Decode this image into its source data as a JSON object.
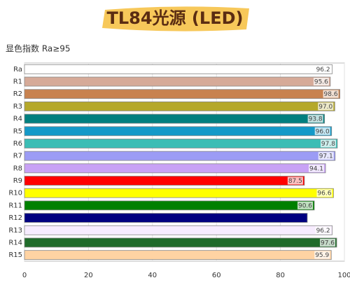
{
  "chart_data": {
    "type": "hbar",
    "title": "TL84光源 (LED)",
    "subtitle": "显色指数 Ra≥95",
    "categories": [
      "Ra",
      "R1",
      "R2",
      "R3",
      "R4",
      "R5",
      "R6",
      "R7",
      "R8",
      "R9",
      "R10",
      "R11",
      "R12",
      "R13",
      "R14",
      "R15"
    ],
    "values": [
      96.2,
      95.6,
      98.6,
      97.0,
      93.8,
      96.0,
      97.8,
      97.1,
      94.1,
      87.5,
      96.6,
      90.6,
      88.4,
      96.2,
      97.6,
      95.9
    ],
    "value_labels": [
      "96.2",
      "95.6",
      "98.6",
      "97.0",
      "93.8",
      "96.0",
      "97.8",
      "97.1",
      "94.1",
      "87.5",
      "96.6",
      "90.6",
      null,
      "96.2",
      "97.6",
      "95.9"
    ],
    "colors": [
      "#ffffff",
      "#d6aa98",
      "#c8824f",
      "#b5a82a",
      "#007f7f",
      "#1499c8",
      "#3cbdb5",
      "#9c9cf5",
      "#c8a2f5",
      "#ff0000",
      "#ffff00",
      "#008000",
      "#000080",
      "#f7ecff",
      "#1f6b2a",
      "#ffd3a3"
    ],
    "xlim": [
      0,
      100
    ],
    "xticks": [
      0,
      20,
      40,
      60,
      80,
      100
    ],
    "grid": true
  }
}
